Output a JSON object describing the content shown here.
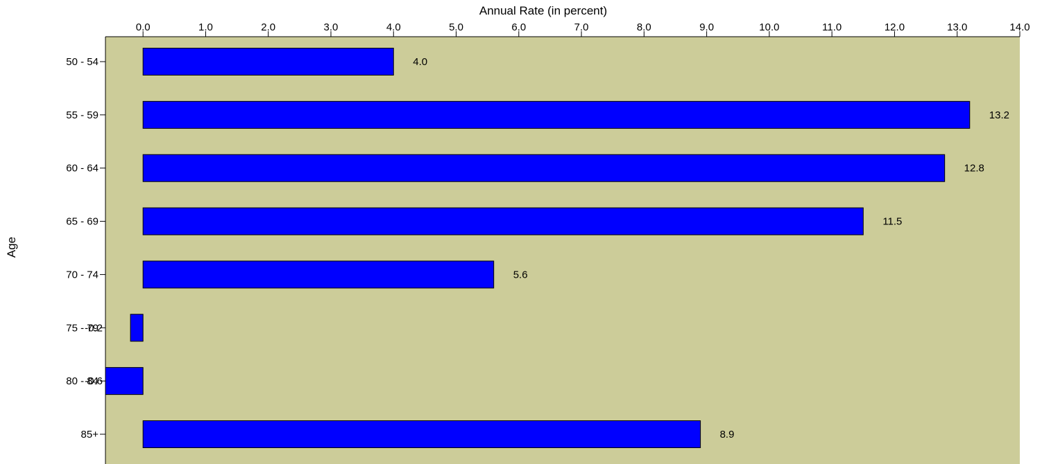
{
  "chart_data": {
    "type": "bar",
    "orientation": "horizontal",
    "xlabel": "Annual Rate (in percent)",
    "ylabel": "Age",
    "xlim": [
      -0.6,
      14.0
    ],
    "xticks": [
      0.0,
      1.0,
      2.0,
      3.0,
      4.0,
      5.0,
      6.0,
      7.0,
      8.0,
      9.0,
      10.0,
      11.0,
      12.0,
      13.0,
      14.0
    ],
    "tick_labels": [
      "0.0",
      "1.0",
      "2.0",
      "3.0",
      "4.0",
      "5.0",
      "6.0",
      "7.0",
      "8.0",
      "9.0",
      "10.0",
      "11.0",
      "12.0",
      "13.0",
      "14.0"
    ],
    "categories": [
      "50 - 54",
      "55 - 59",
      "60 - 64",
      "65 - 69",
      "70 - 74",
      "75 - 79",
      "80 - 84",
      "85+"
    ],
    "values": [
      4.0,
      13.2,
      12.8,
      11.5,
      5.6,
      -0.2,
      -0.6,
      8.9
    ],
    "value_labels": [
      "4.0",
      "13.2",
      "12.8",
      "11.5",
      "5.6",
      "-0.2",
      "-0.6",
      "8.9"
    ],
    "x_axis_position": "top",
    "grid": false,
    "legend": "none",
    "colors": {
      "bar": "#0000ff",
      "bar_border": "#000000",
      "plot_background": "#cccc99",
      "page_background": "#ffffff"
    }
  }
}
